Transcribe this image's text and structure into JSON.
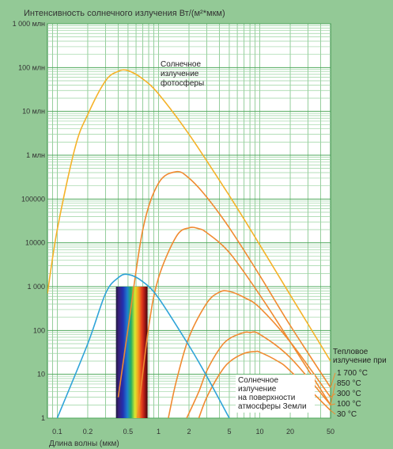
{
  "chart_data": {
    "type": "line",
    "title": "Интенсивность солнечного излучения Вт/(м²*мкм)",
    "xlabel": "Длина волны (мкм)",
    "ylabel": "",
    "x_scale": "log",
    "y_scale": "log",
    "xlim": [
      0.08,
      50
    ],
    "ylim": [
      1,
      1000000000
    ],
    "grid": true,
    "x_ticks": [
      {
        "value": 0.1,
        "label": "0.1"
      },
      {
        "value": 0.2,
        "label": "0.2"
      },
      {
        "value": 0.5,
        "label": "0.5"
      },
      {
        "value": 1,
        "label": "1"
      },
      {
        "value": 2,
        "label": "2"
      },
      {
        "value": 5,
        "label": "5"
      },
      {
        "value": 10,
        "label": "10"
      },
      {
        "value": 20,
        "label": "20"
      },
      {
        "value": 50,
        "label": "50"
      }
    ],
    "y_ticks": [
      {
        "value": 1000000000,
        "label": "1 000 млн"
      },
      {
        "value": 100000000,
        "label": "100 млн"
      },
      {
        "value": 10000000,
        "label": "10 млн"
      },
      {
        "value": 1000000,
        "label": "1 млн"
      },
      {
        "value": 100000,
        "label": "100000"
      },
      {
        "value": 10000,
        "label": "10000"
      },
      {
        "value": 1000,
        "label": "1 000"
      },
      {
        "value": 100,
        "label": "100"
      },
      {
        "value": 10,
        "label": "10"
      },
      {
        "value": 1,
        "label": "1"
      }
    ],
    "visible_band": {
      "x_start": 0.38,
      "x_end": 0.78
    },
    "series": [
      {
        "name": "Солнечное излучение фотосферы",
        "color": "#f5b228",
        "x": [
          0.08,
          0.1,
          0.15,
          0.2,
          0.3,
          0.4,
          0.5,
          0.7,
          1,
          2,
          5,
          10,
          20,
          50
        ],
        "y": [
          700,
          20000,
          1500000,
          8500000,
          50000000,
          82000000,
          85000000,
          55000000,
          25000000,
          3000000,
          120000,
          9000,
          650,
          20
        ]
      },
      {
        "name": "1 700 °C",
        "color": "#f08a30",
        "x": [
          0.4,
          0.5,
          0.7,
          1,
          1.5,
          2,
          3,
          5,
          10,
          20,
          50
        ],
        "y": [
          3,
          110,
          20000,
          230000,
          420000,
          300000,
          110000,
          22000,
          1800,
          130,
          5
        ]
      },
      {
        "name": "850 °C",
        "color": "#f08a30",
        "x": [
          0.62,
          0.8,
          1,
          1.5,
          2,
          2.5,
          3,
          5,
          10,
          20,
          50
        ],
        "y": [
          1,
          120,
          1600,
          14000,
          22000,
          21000,
          17000,
          6000,
          650,
          55,
          2
        ]
      },
      {
        "name": "300 °C",
        "color": "#f08a30",
        "x": [
          1.25,
          1.5,
          2,
          3,
          4,
          5,
          7,
          10,
          20,
          50
        ],
        "y": [
          1,
          7,
          70,
          420,
          750,
          780,
          570,
          330,
          55,
          3
        ]
      },
      {
        "name": "100 °C",
        "color": "#f08a30",
        "x": [
          1.9,
          2.5,
          3,
          4,
          5,
          7,
          8,
          10,
          20,
          50
        ],
        "y": [
          1,
          4,
          12,
          38,
          65,
          90,
          90,
          82,
          24,
          2
        ]
      },
      {
        "name": "30 °C",
        "color": "#f08a30",
        "x": [
          2.5,
          3,
          4,
          5,
          7,
          9,
          10,
          15,
          20,
          50
        ],
        "y": [
          1,
          3,
          10,
          19,
          30,
          33,
          32,
          20,
          12,
          1.5
        ]
      },
      {
        "name": "Солнечное излучение на поверхности атмосферы Земли",
        "color": "#2ea3d8",
        "x": [
          0.1,
          0.2,
          0.3,
          0.4,
          0.5,
          0.7,
          1,
          2,
          3,
          5
        ],
        "y": [
          1,
          50,
          700,
          1600,
          1900,
          1300,
          550,
          45,
          9,
          1
        ]
      }
    ],
    "annotations": [
      {
        "id": "photosphere",
        "lines": [
          "Солнечное",
          "излучение",
          "фотосферы"
        ]
      },
      {
        "id": "earth",
        "lines": [
          "Солнечное",
          "излучение",
          "на поверхности",
          "атмосферы Земли"
        ]
      },
      {
        "id": "thermal",
        "lines": [
          "Тепловое",
          "излучение при"
        ]
      }
    ],
    "temperature_labels": [
      "1 700 °C",
      "850 °C",
      "300 °C",
      "100 °C",
      "30 °C"
    ]
  }
}
